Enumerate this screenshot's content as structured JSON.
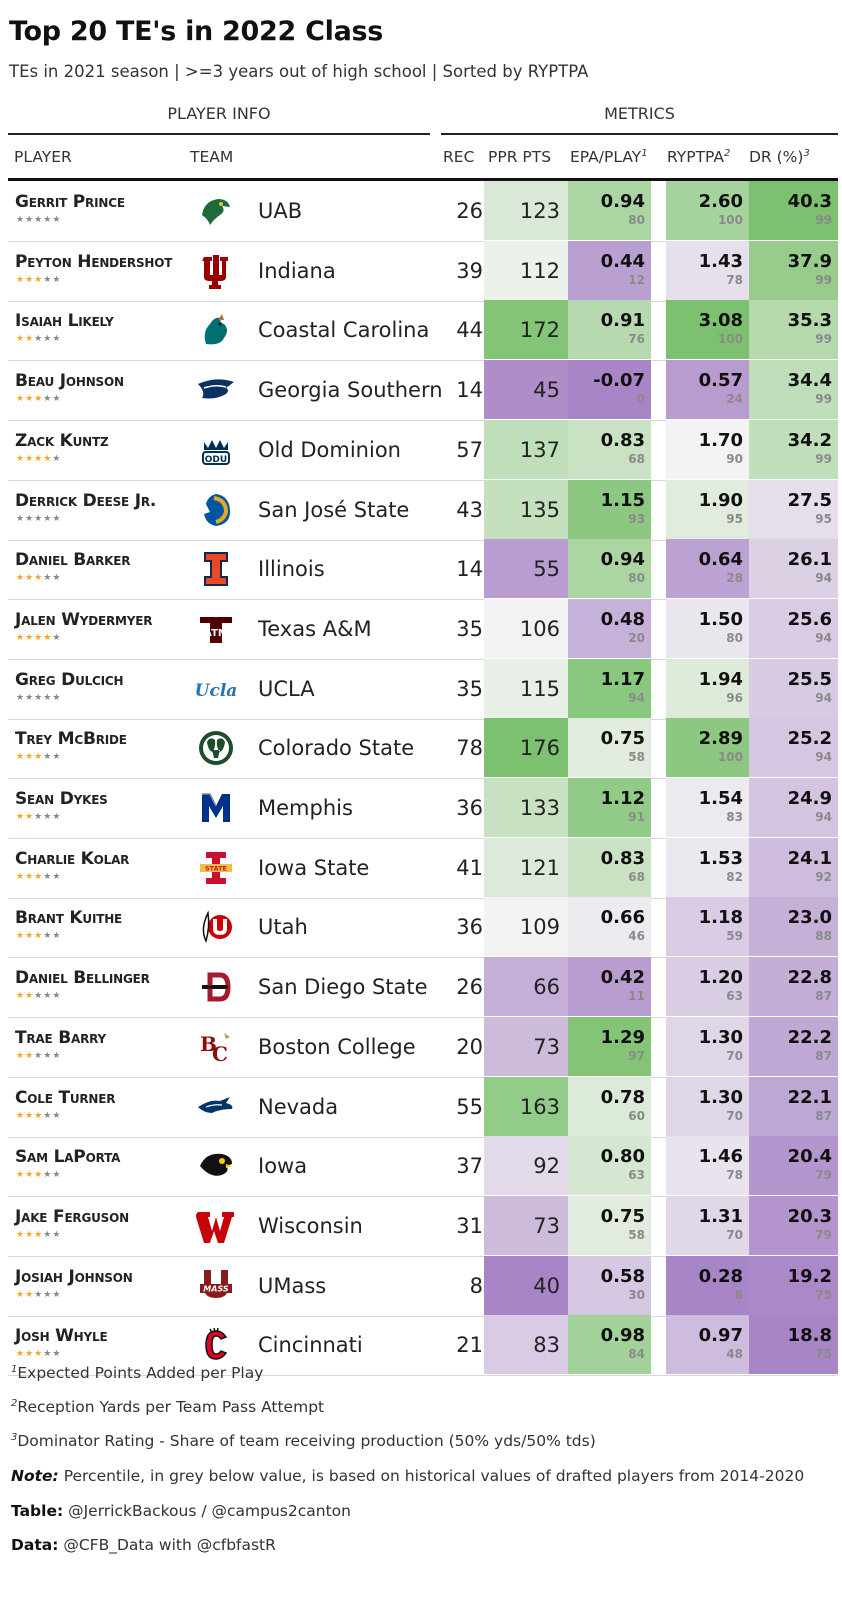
{
  "title": "Top 20 TE's in 2022 Class",
  "subtitle": "TEs in 2021 season | >=3 years out of high school | Sorted by RYPTPA",
  "groups": {
    "player_info": "PLAYER INFO",
    "metrics": "METRICS"
  },
  "columns": {
    "player": "PLAYER",
    "team": "TEAM",
    "rec": "REC",
    "ppr": "PPR PTS",
    "epa": "EPA/PLAY",
    "epa_sup": "1",
    "ryptpa": "RYPTPA",
    "ryptpa_sup": "2",
    "dr": "DR (%)",
    "dr_sup": "3"
  },
  "colors": {
    "green": "#5aa84f",
    "purple": "#9a6db3",
    "star_on": "#f5a623",
    "star_off": "#888888"
  },
  "rows": [
    {
      "player": "Gerrit Prince",
      "stars": 0,
      "team": "UAB",
      "logo": "uab-dragon-icon",
      "rec": 26,
      "ppr": 123,
      "epa": "0.94",
      "epa_pct": "80",
      "ryptpa": "2.60",
      "ryptpa_pct": "100",
      "dr": "40.3",
      "dr_pct": "99"
    },
    {
      "player": "Peyton Hendershot",
      "stars": 3,
      "team": "Indiana",
      "logo": "indiana-trident-icon",
      "rec": 39,
      "ppr": 112,
      "epa": "0.44",
      "epa_pct": "12",
      "ryptpa": "1.43",
      "ryptpa_pct": "78",
      "dr": "37.9",
      "dr_pct": "99"
    },
    {
      "player": "Isaiah Likely",
      "stars": 2,
      "team": "Coastal Carolina",
      "logo": "coastal-carolina-chanticleer-icon",
      "rec": 44,
      "ppr": 172,
      "epa": "0.91",
      "epa_pct": "76",
      "ryptpa": "3.08",
      "ryptpa_pct": "100",
      "dr": "35.3",
      "dr_pct": "99"
    },
    {
      "player": "Beau Johnson",
      "stars": 3,
      "team": "Georgia Southern",
      "logo": "georgia-southern-eagle-icon",
      "rec": 14,
      "ppr": 45,
      "epa": "-0.07",
      "epa_pct": "0",
      "ryptpa": "0.57",
      "ryptpa_pct": "24",
      "dr": "34.4",
      "dr_pct": "99"
    },
    {
      "player": "Zack Kuntz",
      "stars": 4,
      "team": "Old Dominion",
      "logo": "old-dominion-crown-icon",
      "rec": 57,
      "ppr": 137,
      "epa": "0.83",
      "epa_pct": "68",
      "ryptpa": "1.70",
      "ryptpa_pct": "90",
      "dr": "34.2",
      "dr_pct": "99"
    },
    {
      "player": "Derrick Deese Jr.",
      "stars": 0,
      "team": "San José State",
      "logo": "san-jose-state-spartan-icon",
      "rec": 43,
      "ppr": 135,
      "epa": "1.15",
      "epa_pct": "93",
      "ryptpa": "1.90",
      "ryptpa_pct": "95",
      "dr": "27.5",
      "dr_pct": "95"
    },
    {
      "player": "Daniel Barker",
      "stars": 3,
      "team": "Illinois",
      "logo": "illinois-block-i-icon",
      "rec": 14,
      "ppr": 55,
      "epa": "0.94",
      "epa_pct": "80",
      "ryptpa": "0.64",
      "ryptpa_pct": "28",
      "dr": "26.1",
      "dr_pct": "94"
    },
    {
      "player": "Jalen Wydermyer",
      "stars": 4,
      "team": "Texas A&M",
      "logo": "texas-am-atm-icon",
      "rec": 35,
      "ppr": 106,
      "epa": "0.48",
      "epa_pct": "20",
      "ryptpa": "1.50",
      "ryptpa_pct": "80",
      "dr": "25.6",
      "dr_pct": "94"
    },
    {
      "player": "Greg Dulcich",
      "stars": 0,
      "team": "UCLA",
      "logo": "ucla-script-icon",
      "rec": 35,
      "ppr": 115,
      "epa": "1.17",
      "epa_pct": "94",
      "ryptpa": "1.94",
      "ryptpa_pct": "96",
      "dr": "25.5",
      "dr_pct": "94"
    },
    {
      "player": "Trey McBride",
      "stars": 3,
      "team": "Colorado State",
      "logo": "colorado-state-ram-icon",
      "rec": 78,
      "ppr": 176,
      "epa": "0.75",
      "epa_pct": "58",
      "ryptpa": "2.89",
      "ryptpa_pct": "100",
      "dr": "25.2",
      "dr_pct": "94"
    },
    {
      "player": "Sean Dykes",
      "stars": 2,
      "team": "Memphis",
      "logo": "memphis-tiger-icon",
      "rec": 36,
      "ppr": 133,
      "epa": "1.12",
      "epa_pct": "91",
      "ryptpa": "1.54",
      "ryptpa_pct": "83",
      "dr": "24.9",
      "dr_pct": "94"
    },
    {
      "player": "Charlie Kolar",
      "stars": 3,
      "team": "Iowa State",
      "logo": "iowa-state-i-icon",
      "rec": 41,
      "ppr": 121,
      "epa": "0.83",
      "epa_pct": "68",
      "ryptpa": "1.53",
      "ryptpa_pct": "82",
      "dr": "24.1",
      "dr_pct": "92"
    },
    {
      "player": "Brant Kuithe",
      "stars": 3,
      "team": "Utah",
      "logo": "utah-drum-feather-icon",
      "rec": 36,
      "ppr": 109,
      "epa": "0.66",
      "epa_pct": "46",
      "ryptpa": "1.18",
      "ryptpa_pct": "59",
      "dr": "23.0",
      "dr_pct": "88"
    },
    {
      "player": "Daniel Bellinger",
      "stars": 2,
      "team": "San Diego State",
      "logo": "san-diego-state-sd-icon",
      "rec": 26,
      "ppr": 66,
      "epa": "0.42",
      "epa_pct": "11",
      "ryptpa": "1.20",
      "ryptpa_pct": "63",
      "dr": "22.8",
      "dr_pct": "87"
    },
    {
      "player": "Trae Barry",
      "stars": 2,
      "team": "Boston College",
      "logo": "boston-college-bc-icon",
      "rec": 20,
      "ppr": 73,
      "epa": "1.29",
      "epa_pct": "97",
      "ryptpa": "1.30",
      "ryptpa_pct": "70",
      "dr": "22.2",
      "dr_pct": "87"
    },
    {
      "player": "Cole Turner",
      "stars": 3,
      "team": "Nevada",
      "logo": "nevada-wolf-icon",
      "rec": 55,
      "ppr": 163,
      "epa": "0.78",
      "epa_pct": "60",
      "ryptpa": "1.30",
      "ryptpa_pct": "70",
      "dr": "22.1",
      "dr_pct": "87"
    },
    {
      "player": "Sam LaPorta",
      "stars": 3,
      "team": "Iowa",
      "logo": "iowa-hawkeye-icon",
      "rec": 37,
      "ppr": 92,
      "epa": "0.80",
      "epa_pct": "63",
      "ryptpa": "1.46",
      "ryptpa_pct": "78",
      "dr": "20.4",
      "dr_pct": "79"
    },
    {
      "player": "Jake Ferguson",
      "stars": 3,
      "team": "Wisconsin",
      "logo": "wisconsin-w-icon",
      "rec": 31,
      "ppr": 73,
      "epa": "0.75",
      "epa_pct": "58",
      "ryptpa": "1.31",
      "ryptpa_pct": "70",
      "dr": "20.3",
      "dr_pct": "79"
    },
    {
      "player": "Josiah Johnson",
      "stars": 2,
      "team": "UMass",
      "logo": "umass-um-icon",
      "rec": 8,
      "ppr": 40,
      "epa": "0.58",
      "epa_pct": "30",
      "ryptpa": "0.28",
      "ryptpa_pct": "8",
      "dr": "19.2",
      "dr_pct": "75"
    },
    {
      "player": "Josh Whyle",
      "stars": 3,
      "team": "Cincinnati",
      "logo": "cincinnati-c-icon",
      "rec": 21,
      "ppr": 83,
      "epa": "0.98",
      "epa_pct": "84",
      "ryptpa": "0.97",
      "ryptpa_pct": "48",
      "dr": "18.8",
      "dr_pct": "75"
    }
  ],
  "footnotes": {
    "f1_sup": "1",
    "f1": "Expected Points Added per Play",
    "f2_sup": "2",
    "f2": "Reception Yards per Team Pass Attempt",
    "f3_sup": "3",
    "f3": "Dominator Rating - Share of team receiving production (50% yds/50% tds)",
    "note_label": "Note:",
    "note": "Percentile, in grey below value, is based on historical values of drafted players from 2014-2020",
    "table_label": "Table:",
    "table": "@JerrickBackous / @campus2canton",
    "data_label": "Data:",
    "data": "@CFB_Data with @cfbfastR"
  }
}
